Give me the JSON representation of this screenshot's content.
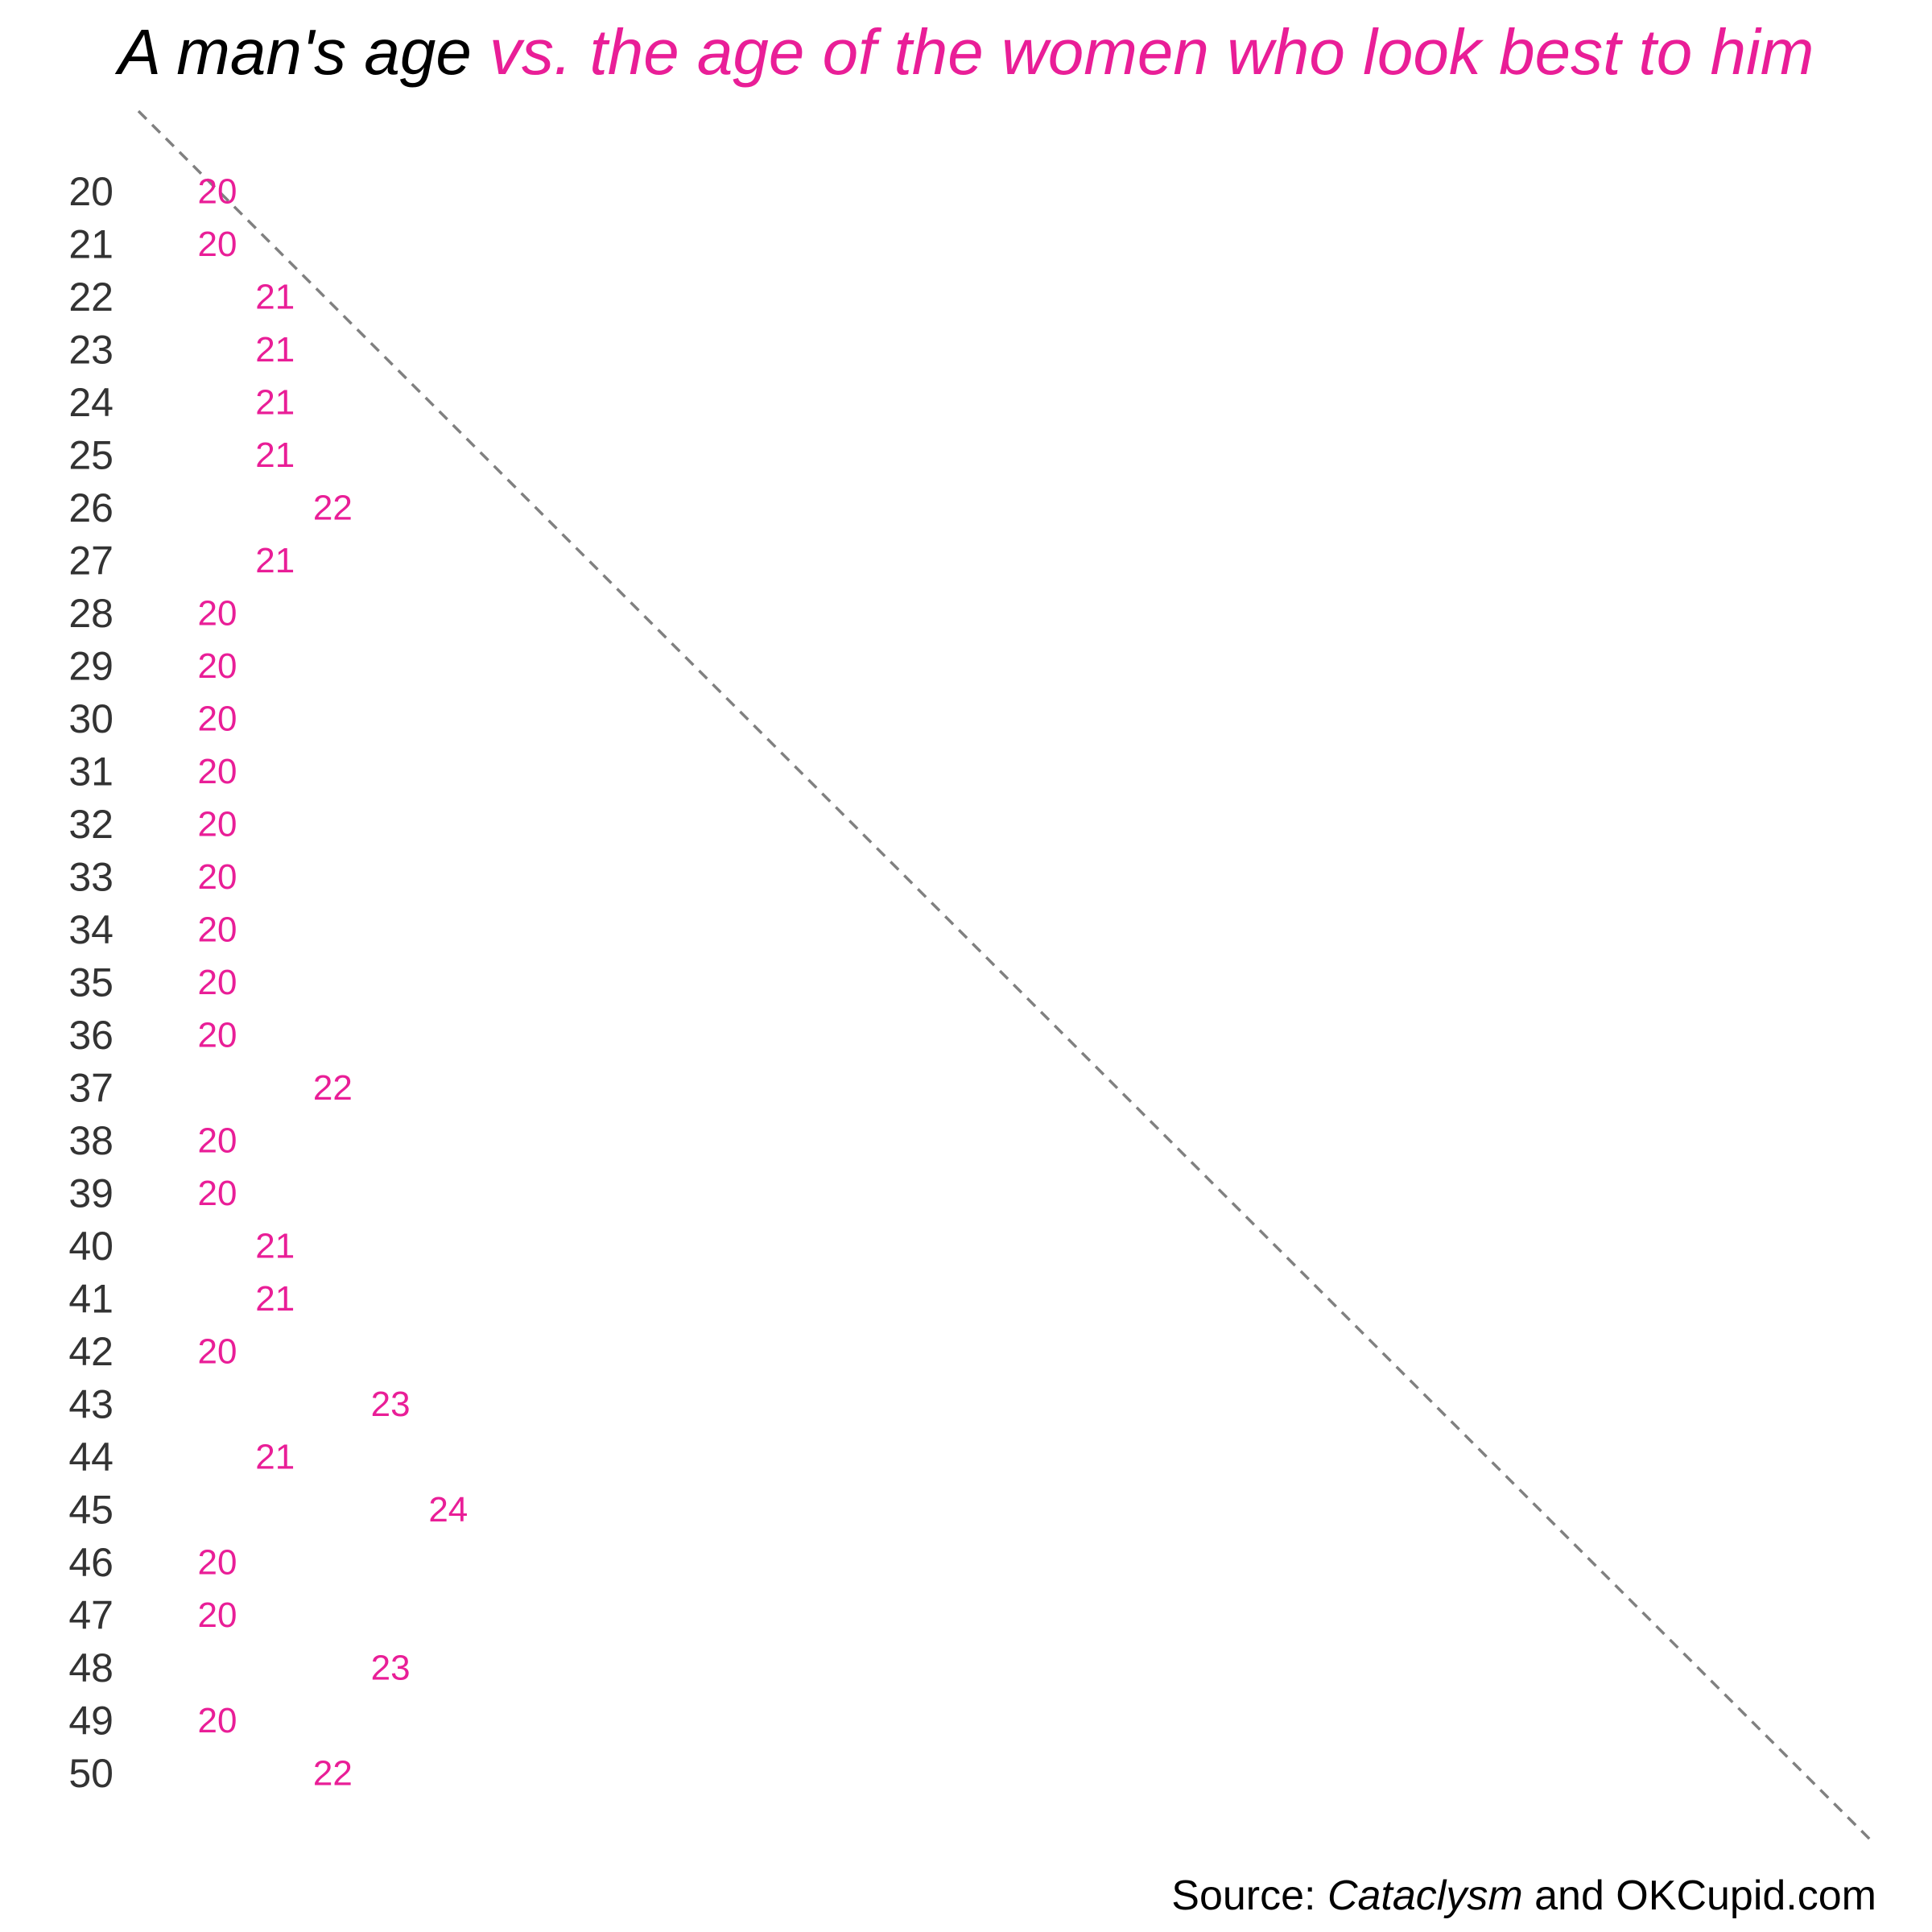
{
  "title": {
    "part_1": "A man's age",
    "part_2": " vs. the age of the women who look best to him",
    "part_1_color": "#000000",
    "part_2_color": "#e91e97"
  },
  "source": {
    "prefix": "Source: ",
    "italic": "Cataclysm",
    "suffix": " and OKCupid.com"
  },
  "chart_data": {
    "type": "scatter",
    "title": "A man's age vs. the age of the women who look best to him",
    "x_label": "",
    "y_label": "",
    "y_description": "man's age (row labels)",
    "x_description": "age of the women who look best to him (printed as the marker)",
    "y": [
      20,
      21,
      22,
      23,
      24,
      25,
      26,
      27,
      28,
      29,
      30,
      31,
      32,
      33,
      34,
      35,
      36,
      37,
      38,
      39,
      40,
      41,
      42,
      43,
      44,
      45,
      46,
      47,
      48,
      49,
      50
    ],
    "x": [
      20,
      20,
      21,
      21,
      21,
      21,
      22,
      21,
      20,
      20,
      20,
      20,
      20,
      20,
      20,
      20,
      20,
      22,
      20,
      20,
      21,
      21,
      20,
      23,
      21,
      24,
      20,
      20,
      23,
      20,
      22
    ],
    "xlim": [
      20,
      50
    ],
    "ylim": [
      20,
      50
    ],
    "reference_line": "diagonal x = y (dashed)",
    "grid": false,
    "legend": "none",
    "colors": {
      "value_labels": "#e91e97",
      "row_labels": "#333333",
      "reference_line": "#808080"
    }
  }
}
